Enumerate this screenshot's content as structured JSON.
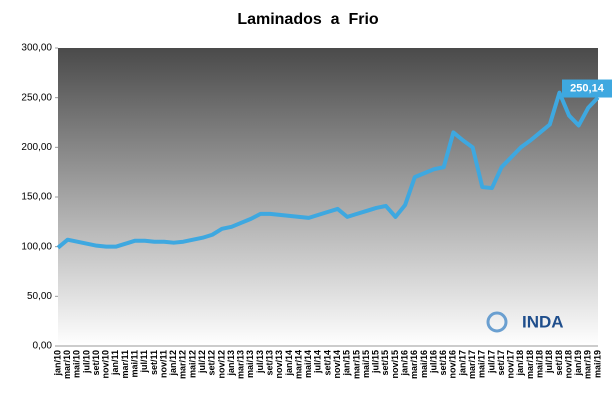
{
  "chart_data": {
    "type": "line",
    "title": "Laminados  a  Frio",
    "categories": [
      "jan/10",
      "mar/10",
      "mai/10",
      "jul/10",
      "set/10",
      "nov/10",
      "jan/11",
      "mar/11",
      "mai/11",
      "jul/11",
      "set/11",
      "nov/11",
      "jan/12",
      "mar/12",
      "mai/12",
      "jul/12",
      "set/12",
      "nov/12",
      "jan/13",
      "mar/13",
      "mai/13",
      "jul/13",
      "set/13",
      "nov/13",
      "jan/14",
      "mar/14",
      "mai/14",
      "jul/14",
      "set/14",
      "nov/14",
      "jan/15",
      "mar/15",
      "mai/15",
      "jul/15",
      "set/15",
      "nov/15",
      "jan/16",
      "mar/16",
      "mai/16",
      "jul/16",
      "set/16",
      "nov/16",
      "jan/17",
      "mar/17",
      "mai/17",
      "jul/17",
      "set/17",
      "nov/17",
      "jan/18",
      "mar/18",
      "mai/18",
      "jul/18",
      "set/18",
      "nov/18",
      "jan/19",
      "mar/19",
      "mai/19"
    ],
    "series": [
      {
        "color": "#3ea8e0",
        "values": [
          99,
          107,
          105,
          103,
          101,
          100,
          100,
          103,
          106,
          106,
          105,
          105,
          104,
          105,
          107,
          109,
          112,
          118,
          120,
          124,
          128,
          133,
          133,
          132,
          131,
          130,
          129,
          132,
          135,
          138,
          130,
          133,
          136,
          139,
          141,
          130,
          142,
          170,
          174,
          178,
          180,
          215,
          207,
          200,
          160,
          159,
          180,
          190,
          200,
          207,
          215,
          223,
          255,
          232,
          222,
          240,
          250.14
        ],
        "value_labels": [
          null,
          null,
          null,
          null,
          null,
          null,
          null,
          null,
          null,
          null,
          null,
          null,
          null,
          null,
          null,
          null,
          null,
          null,
          null,
          null,
          null,
          null,
          null,
          null,
          null,
          null,
          null,
          null,
          null,
          null,
          null,
          null,
          null,
          null,
          null,
          null,
          null,
          null,
          null,
          null,
          null,
          null,
          null,
          null,
          null,
          null,
          null,
          null,
          null,
          null,
          null,
          null,
          null,
          null,
          null,
          null,
          "250,14"
        ]
      }
    ],
    "ylim": [
      0,
      300
    ],
    "yticks": [
      {
        "value": 0,
        "label": "0,00"
      },
      {
        "value": 50,
        "label": "50,00"
      },
      {
        "value": 100,
        "label": "100,00"
      },
      {
        "value": 150,
        "label": "150,00"
      },
      {
        "value": 200,
        "label": "200,00"
      },
      {
        "value": 250,
        "label": "250,00"
      },
      {
        "value": 300,
        "label": "300,00"
      }
    ],
    "logo": "INDA"
  }
}
